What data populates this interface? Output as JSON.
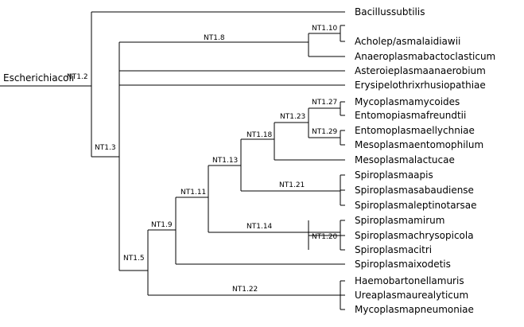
{
  "diagram": {
    "type": "phylogenetic-tree",
    "root_label": "Escherichiacoli",
    "leaves": [
      "Bacillussubtilis",
      "Acholep/asmalaidiawii",
      "Anaeroplasmabactoclasticum",
      "Asteroieplasmaanaerobium",
      "Erysipelothrixrhusiopathiae",
      "Mycoplasmamycoides",
      "Entomopiasmafreundtii",
      "Entomoplasmaellychniae",
      "Mesoplasmaentomophilum",
      "Mesoplasmalactucae",
      "Spiroplasmaapis",
      "Spiroplasmasabaudiense",
      "Spiroplasmaleptinotarsae",
      "Spiroplasmamirum",
      "Spiroplasmachrysopicola",
      "Spiroplasmacitri",
      "Spiroplasmaixodetis",
      "Haemobartonellamuris",
      "Ureaplasmaurealyticum",
      "Mycoplasmapneumoniae"
    ],
    "nodes": [
      "NT1.2",
      "NT1.3",
      "NT1.8",
      "NT1.10",
      "NT1.5",
      "NT1.9",
      "NT1.11",
      "NT1.13",
      "NT1.18",
      "NT1.23",
      "NT1.27",
      "NT1.29",
      "NT1.21",
      "NT1.14",
      "NT1.20",
      "NT1.22"
    ]
  }
}
